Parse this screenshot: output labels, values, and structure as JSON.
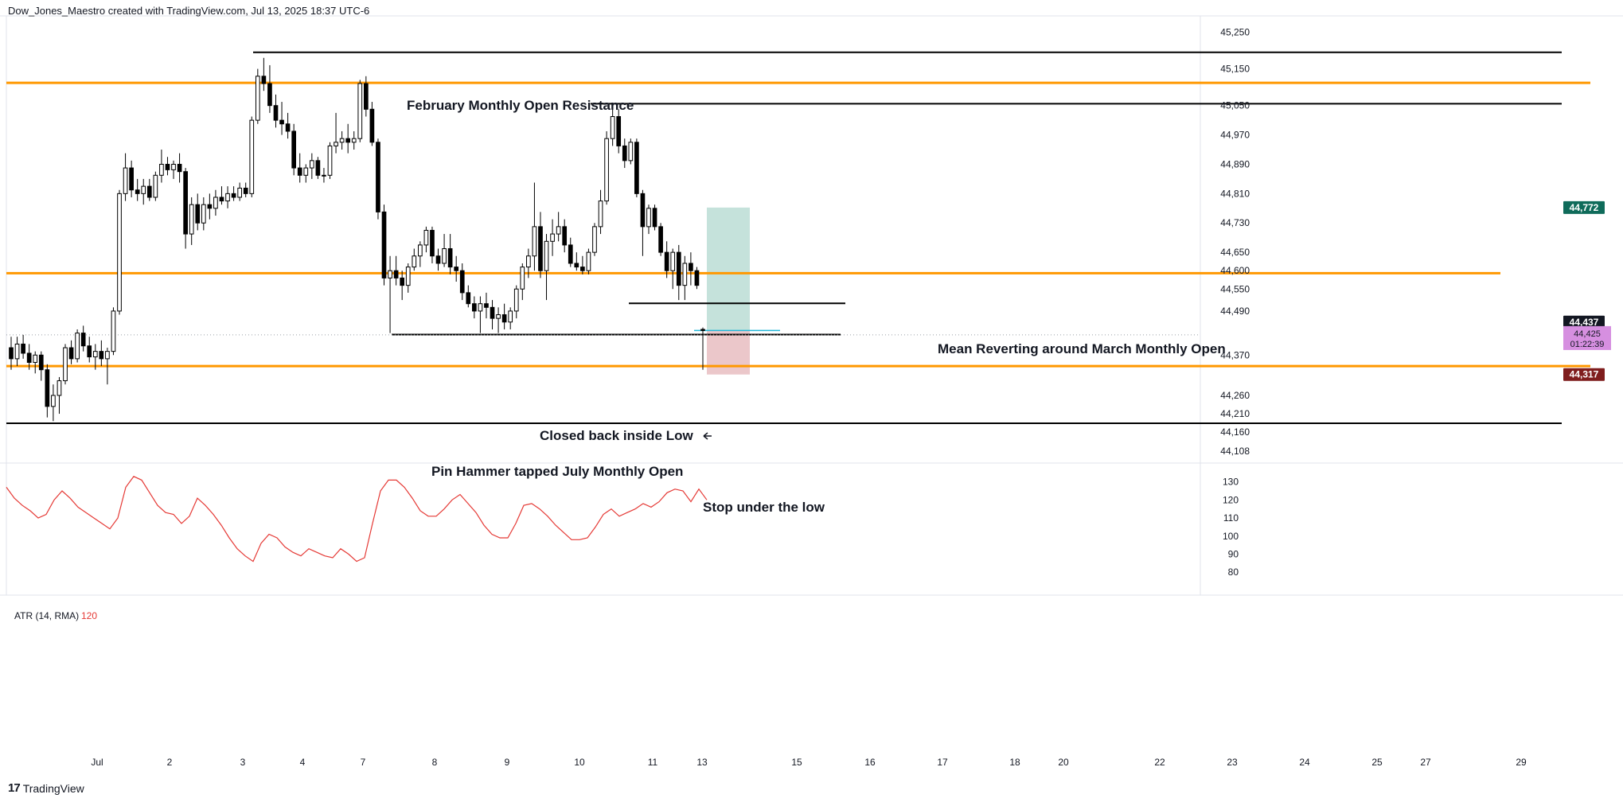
{
  "header": {
    "attribution": "Dow_Jones_Maestro created with TradingView.com, Jul 13, 2025 18:37 UTC-6"
  },
  "footer": {
    "logo_text": "TradingView",
    "logo_mark": "17"
  },
  "colors": {
    "level_line": "#ff9800",
    "ref_line": "#000000",
    "target_zone": "#b2d8cf",
    "stop_zone": "#e6b9bd",
    "entry_line": "#22b6d9",
    "atr_line": "#e53935",
    "badge_target": "#0f6b5a",
    "badge_stop": "#7f1d1d",
    "badge_last": "#131722",
    "badge_countdown": "#d68fe0"
  },
  "chart_data": [
    {
      "type": "candlestick",
      "symbol_note": "Dow Jones index",
      "x_tick_labels": [
        "Jul",
        "2",
        "3",
        "4",
        "7",
        "8",
        "9",
        "10",
        "11",
        "13",
        "15",
        "16",
        "17",
        "18",
        "20",
        "22",
        "23",
        "24",
        "25",
        "27",
        "29"
      ],
      "y_tick_labels": [
        "45,250",
        "45,150",
        "45,050",
        "44,970",
        "44,890",
        "44,810",
        "44,730",
        "44,650",
        "44,600",
        "44,550",
        "44,490",
        "44,370",
        "44,260",
        "44,210",
        "44,160",
        "44,108"
      ],
      "ylim": [
        44080,
        45290
      ],
      "price_badges": {
        "target": "44,772",
        "last": "44,437",
        "current": "44,425",
        "countdown": "01:22:39",
        "stop": "44,317"
      },
      "horizontal_levels": [
        {
          "price": 45112,
          "style": "orange"
        },
        {
          "price": 44593,
          "style": "orange"
        },
        {
          "price": 44340,
          "style": "orange"
        },
        {
          "price": 45195,
          "style": "black"
        },
        {
          "price": 45055,
          "style": "black"
        },
        {
          "price": 44511,
          "style": "black"
        },
        {
          "price": 44426,
          "style": "black"
        },
        {
          "price": 44184,
          "style": "black"
        }
      ],
      "annotations": [
        "February Monthly Open Resistance",
        "Mean Reverting around March Monthly Open",
        "Closed back inside Low",
        "Pin Hammer tapped July Monthly Open",
        "Stop under the low"
      ],
      "position": {
        "entry": 44437,
        "target": 44772,
        "stop": 44317
      },
      "candles": [
        {
          "o": 44390,
          "h": 44420,
          "l": 44330,
          "c": 44360
        },
        {
          "o": 44360,
          "h": 44420,
          "l": 44340,
          "c": 44400
        },
        {
          "o": 44400,
          "h": 44425,
          "l": 44360,
          "c": 44375
        },
        {
          "o": 44375,
          "h": 44400,
          "l": 44330,
          "c": 44350
        },
        {
          "o": 44350,
          "h": 44380,
          "l": 44320,
          "c": 44370
        },
        {
          "o": 44370,
          "h": 44380,
          "l": 44300,
          "c": 44330
        },
        {
          "o": 44330,
          "h": 44345,
          "l": 44200,
          "c": 44230
        },
        {
          "o": 44230,
          "h": 44290,
          "l": 44190,
          "c": 44260
        },
        {
          "o": 44260,
          "h": 44310,
          "l": 44210,
          "c": 44300
        },
        {
          "o": 44300,
          "h": 44400,
          "l": 44290,
          "c": 44390
        },
        {
          "o": 44390,
          "h": 44410,
          "l": 44345,
          "c": 44360
        },
        {
          "o": 44360,
          "h": 44440,
          "l": 44350,
          "c": 44430
        },
        {
          "o": 44430,
          "h": 44450,
          "l": 44380,
          "c": 44395
        },
        {
          "o": 44395,
          "h": 44420,
          "l": 44350,
          "c": 44365
        },
        {
          "o": 44365,
          "h": 44400,
          "l": 44330,
          "c": 44380
        },
        {
          "o": 44380,
          "h": 44410,
          "l": 44340,
          "c": 44360
        },
        {
          "o": 44360,
          "h": 44390,
          "l": 44290,
          "c": 44380
        },
        {
          "o": 44380,
          "h": 44500,
          "l": 44370,
          "c": 44490
        },
        {
          "o": 44490,
          "h": 44820,
          "l": 44480,
          "c": 44810
        },
        {
          "o": 44810,
          "h": 44920,
          "l": 44790,
          "c": 44880
        },
        {
          "o": 44880,
          "h": 44900,
          "l": 44800,
          "c": 44820
        },
        {
          "o": 44820,
          "h": 44850,
          "l": 44790,
          "c": 44810
        },
        {
          "o": 44810,
          "h": 44850,
          "l": 44780,
          "c": 44830
        },
        {
          "o": 44830,
          "h": 44850,
          "l": 44790,
          "c": 44800
        },
        {
          "o": 44800,
          "h": 44870,
          "l": 44790,
          "c": 44860
        },
        {
          "o": 44860,
          "h": 44930,
          "l": 44840,
          "c": 44890
        },
        {
          "o": 44890,
          "h": 44910,
          "l": 44860,
          "c": 44875
        },
        {
          "o": 44875,
          "h": 44900,
          "l": 44850,
          "c": 44890
        },
        {
          "o": 44890,
          "h": 44920,
          "l": 44840,
          "c": 44870
        },
        {
          "o": 44870,
          "h": 44880,
          "l": 44660,
          "c": 44700
        },
        {
          "o": 44700,
          "h": 44800,
          "l": 44670,
          "c": 44780
        },
        {
          "o": 44780,
          "h": 44810,
          "l": 44710,
          "c": 44730
        },
        {
          "o": 44730,
          "h": 44800,
          "l": 44710,
          "c": 44780
        },
        {
          "o": 44780,
          "h": 44810,
          "l": 44740,
          "c": 44770
        },
        {
          "o": 44770,
          "h": 44820,
          "l": 44750,
          "c": 44800
        },
        {
          "o": 44800,
          "h": 44830,
          "l": 44780,
          "c": 44790
        },
        {
          "o": 44790,
          "h": 44830,
          "l": 44770,
          "c": 44810
        },
        {
          "o": 44810,
          "h": 44830,
          "l": 44790,
          "c": 44800
        },
        {
          "o": 44800,
          "h": 44840,
          "l": 44790,
          "c": 44825
        },
        {
          "o": 44825,
          "h": 44840,
          "l": 44800,
          "c": 44810
        },
        {
          "o": 44810,
          "h": 45020,
          "l": 44800,
          "c": 45010
        },
        {
          "o": 45010,
          "h": 45150,
          "l": 45000,
          "c": 45130
        },
        {
          "o": 45130,
          "h": 45180,
          "l": 45090,
          "c": 45110
        },
        {
          "o": 45110,
          "h": 45160,
          "l": 45030,
          "c": 45050
        },
        {
          "o": 45050,
          "h": 45080,
          "l": 44990,
          "c": 45010
        },
        {
          "o": 45010,
          "h": 45060,
          "l": 44970,
          "c": 45000
        },
        {
          "o": 45000,
          "h": 45030,
          "l": 44960,
          "c": 44980
        },
        {
          "o": 44980,
          "h": 45000,
          "l": 44860,
          "c": 44880
        },
        {
          "o": 44880,
          "h": 44920,
          "l": 44840,
          "c": 44860
        },
        {
          "o": 44860,
          "h": 44890,
          "l": 44840,
          "c": 44880
        },
        {
          "o": 44880,
          "h": 44920,
          "l": 44850,
          "c": 44900
        },
        {
          "o": 44900,
          "h": 44910,
          "l": 44850,
          "c": 44860
        },
        {
          "o": 44860,
          "h": 44880,
          "l": 44840,
          "c": 44860
        },
        {
          "o": 44860,
          "h": 44950,
          "l": 44850,
          "c": 44940
        },
        {
          "o": 44940,
          "h": 45030,
          "l": 44920,
          "c": 44950
        },
        {
          "o": 44950,
          "h": 44980,
          "l": 44930,
          "c": 44960
        },
        {
          "o": 44960,
          "h": 45000,
          "l": 44920,
          "c": 44950
        },
        {
          "o": 44950,
          "h": 44980,
          "l": 44930,
          "c": 44960
        },
        {
          "o": 44960,
          "h": 45120,
          "l": 44950,
          "c": 45110
        },
        {
          "o": 45110,
          "h": 45130,
          "l": 45020,
          "c": 45040
        },
        {
          "o": 45040,
          "h": 45060,
          "l": 44940,
          "c": 44950
        },
        {
          "o": 44950,
          "h": 44960,
          "l": 44740,
          "c": 44760
        },
        {
          "o": 44760,
          "h": 44780,
          "l": 44560,
          "c": 44580
        },
        {
          "o": 44580,
          "h": 44640,
          "l": 44430,
          "c": 44600
        },
        {
          "o": 44600,
          "h": 44640,
          "l": 44560,
          "c": 44580
        },
        {
          "o": 44580,
          "h": 44600,
          "l": 44520,
          "c": 44560
        },
        {
          "o": 44560,
          "h": 44620,
          "l": 44540,
          "c": 44610
        },
        {
          "o": 44610,
          "h": 44660,
          "l": 44600,
          "c": 44640
        },
        {
          "o": 44640,
          "h": 44680,
          "l": 44610,
          "c": 44670
        },
        {
          "o": 44670,
          "h": 44720,
          "l": 44650,
          "c": 44710
        },
        {
          "o": 44710,
          "h": 44720,
          "l": 44620,
          "c": 44640
        },
        {
          "o": 44640,
          "h": 44660,
          "l": 44600,
          "c": 44620
        },
        {
          "o": 44620,
          "h": 44700,
          "l": 44610,
          "c": 44660
        },
        {
          "o": 44660,
          "h": 44700,
          "l": 44590,
          "c": 44610
        },
        {
          "o": 44610,
          "h": 44640,
          "l": 44570,
          "c": 44600
        },
        {
          "o": 44600,
          "h": 44620,
          "l": 44520,
          "c": 44540
        },
        {
          "o": 44540,
          "h": 44560,
          "l": 44500,
          "c": 44510
        },
        {
          "o": 44510,
          "h": 44530,
          "l": 44470,
          "c": 44490
        },
        {
          "o": 44490,
          "h": 44530,
          "l": 44430,
          "c": 44510
        },
        {
          "o": 44510,
          "h": 44540,
          "l": 44470,
          "c": 44500
        },
        {
          "o": 44500,
          "h": 44520,
          "l": 44440,
          "c": 44470
        },
        {
          "o": 44470,
          "h": 44500,
          "l": 44430,
          "c": 44480
        },
        {
          "o": 44480,
          "h": 44510,
          "l": 44440,
          "c": 44460
        },
        {
          "o": 44460,
          "h": 44500,
          "l": 44440,
          "c": 44490
        },
        {
          "o": 44490,
          "h": 44560,
          "l": 44470,
          "c": 44550
        },
        {
          "o": 44550,
          "h": 44620,
          "l": 44520,
          "c": 44610
        },
        {
          "o": 44610,
          "h": 44660,
          "l": 44580,
          "c": 44640
        },
        {
          "o": 44640,
          "h": 44840,
          "l": 44600,
          "c": 44720
        },
        {
          "o": 44720,
          "h": 44760,
          "l": 44580,
          "c": 44600
        },
        {
          "o": 44600,
          "h": 44700,
          "l": 44520,
          "c": 44680
        },
        {
          "o": 44680,
          "h": 44740,
          "l": 44640,
          "c": 44700
        },
        {
          "o": 44700,
          "h": 44760,
          "l": 44680,
          "c": 44720
        },
        {
          "o": 44720,
          "h": 44740,
          "l": 44650,
          "c": 44670
        },
        {
          "o": 44670,
          "h": 44690,
          "l": 44610,
          "c": 44620
        },
        {
          "o": 44620,
          "h": 44650,
          "l": 44600,
          "c": 44610
        },
        {
          "o": 44610,
          "h": 44640,
          "l": 44590,
          "c": 44600
        },
        {
          "o": 44600,
          "h": 44660,
          "l": 44590,
          "c": 44650
        },
        {
          "o": 44650,
          "h": 44730,
          "l": 44640,
          "c": 44720
        },
        {
          "o": 44720,
          "h": 44820,
          "l": 44700,
          "c": 44790
        },
        {
          "o": 44790,
          "h": 44980,
          "l": 44780,
          "c": 44960
        },
        {
          "o": 44960,
          "h": 45040,
          "l": 44940,
          "c": 45020
        },
        {
          "o": 45020,
          "h": 45040,
          "l": 44920,
          "c": 44940
        },
        {
          "o": 44940,
          "h": 44960,
          "l": 44880,
          "c": 44900
        },
        {
          "o": 44900,
          "h": 44960,
          "l": 44890,
          "c": 44950
        },
        {
          "o": 44950,
          "h": 44960,
          "l": 44800,
          "c": 44810
        },
        {
          "o": 44810,
          "h": 44820,
          "l": 44640,
          "c": 44720
        },
        {
          "o": 44720,
          "h": 44780,
          "l": 44700,
          "c": 44770
        },
        {
          "o": 44770,
          "h": 44780,
          "l": 44710,
          "c": 44720
        },
        {
          "o": 44720,
          "h": 44730,
          "l": 44640,
          "c": 44650
        },
        {
          "o": 44650,
          "h": 44680,
          "l": 44580,
          "c": 44600
        },
        {
          "o": 44600,
          "h": 44660,
          "l": 44550,
          "c": 44650
        },
        {
          "o": 44650,
          "h": 44670,
          "l": 44520,
          "c": 44560
        },
        {
          "o": 44560,
          "h": 44640,
          "l": 44520,
          "c": 44620
        },
        {
          "o": 44620,
          "h": 44650,
          "l": 44560,
          "c": 44600
        },
        {
          "o": 44600,
          "h": 44610,
          "l": 44550,
          "c": 44560
        },
        {
          "o": 44440,
          "h": 44445,
          "l": 44330,
          "c": 44437
        }
      ]
    },
    {
      "type": "line",
      "title": "ATR (14, RMA)",
      "last_value": "120",
      "y_tick_labels": [
        "130",
        "120",
        "110",
        "100",
        "90",
        "80"
      ],
      "ylim": [
        77,
        136
      ],
      "values": [
        127,
        121,
        117,
        114,
        110,
        112,
        120,
        125,
        121,
        116,
        113,
        110,
        107,
        104,
        110,
        127,
        133,
        131,
        124,
        117,
        113,
        112,
        107,
        111,
        121,
        117,
        112,
        106,
        99,
        93,
        89,
        86,
        96,
        101,
        99,
        94,
        91,
        89,
        93,
        91,
        89,
        88,
        93,
        90,
        86,
        88,
        107,
        125,
        131,
        131,
        127,
        121,
        114,
        111,
        111,
        115,
        120,
        123,
        118,
        113,
        106,
        101,
        99,
        99,
        107,
        117,
        118,
        115,
        111,
        106,
        102,
        98,
        98,
        99,
        105,
        112,
        115,
        111,
        113,
        115,
        118,
        116,
        119,
        124,
        126,
        125,
        119,
        126,
        120
      ]
    }
  ]
}
